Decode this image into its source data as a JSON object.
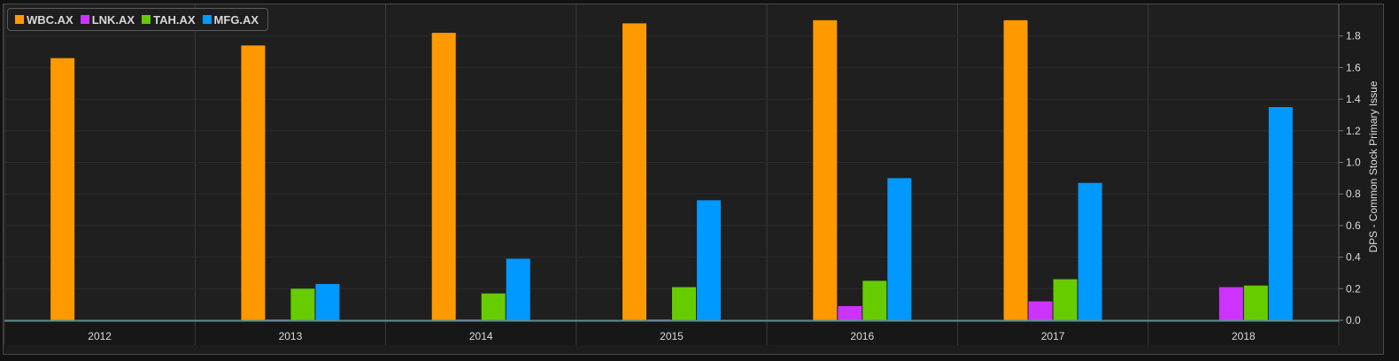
{
  "chart_data": {
    "type": "bar",
    "categories": [
      "2012",
      "2013",
      "2014",
      "2015",
      "2016",
      "2017",
      "2018"
    ],
    "series": [
      {
        "name": "WBC.AX",
        "color": "#ff9900",
        "values": [
          1.66,
          1.74,
          1.82,
          1.88,
          1.9,
          1.9,
          null
        ]
      },
      {
        "name": "LNK.AX",
        "color": "#cc33ff",
        "values": [
          null,
          0.005,
          0.005,
          0.005,
          0.09,
          0.12,
          0.21
        ]
      },
      {
        "name": "TAH.AX",
        "color": "#66cc00",
        "values": [
          null,
          0.2,
          0.17,
          0.21,
          0.25,
          0.26,
          0.22
        ]
      },
      {
        "name": "MFG.AX",
        "color": "#0099ff",
        "values": [
          null,
          0.23,
          0.39,
          0.76,
          0.9,
          0.87,
          1.35
        ]
      }
    ],
    "ylabel": "DPS - Common Stock Primary Issue",
    "ylim": [
      0,
      2.0
    ],
    "yticks": [
      "0.0",
      "0.2",
      "0.4",
      "0.6",
      "0.8",
      "1.0",
      "1.2",
      "1.4",
      "1.6",
      "1.8"
    ],
    "legend_position": "top-left",
    "y_axis_side": "right",
    "grid": true
  }
}
